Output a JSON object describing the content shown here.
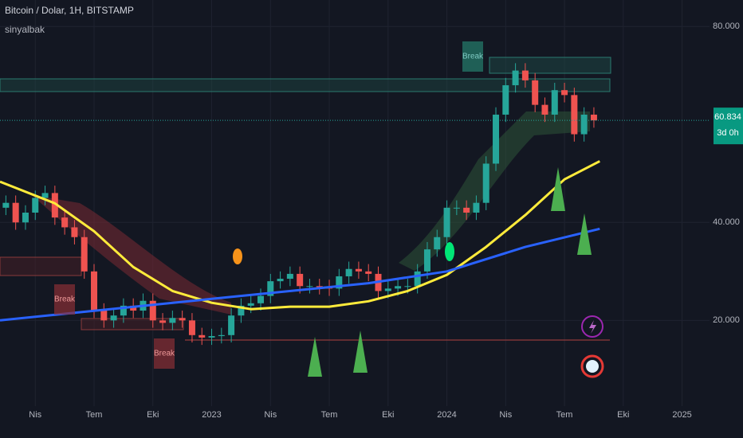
{
  "chart_data": {
    "type": "candlestick",
    "title": "Bitcoin / Dolar, 1H, BITSTAMP",
    "subtitle": "sinyalbak",
    "x": [
      1.5,
      2,
      2.5,
      3,
      3.5,
      4,
      4.5,
      5,
      5.5,
      6,
      6.5,
      7,
      7.5,
      8,
      8.5,
      9,
      9.5,
      10,
      10.5,
      11,
      11.5,
      12,
      12.5,
      13,
      13.5,
      14,
      14.5,
      15,
      15.5,
      16,
      16.5,
      17,
      17.5,
      18,
      18.5,
      19,
      19.5,
      20,
      20.5,
      21,
      21.5,
      22,
      22.5,
      23,
      23.5,
      24,
      24.5,
      25,
      25.5,
      26,
      26.5,
      27,
      27.5,
      28,
      28.5,
      29,
      29.5,
      30,
      30.5,
      31,
      31.5
    ],
    "open": [
      43000,
      44000,
      40000,
      42000,
      45000,
      46000,
      41000,
      39000,
      37000,
      30000,
      22000,
      20000,
      21000,
      23000,
      22000,
      24000,
      20000,
      19500,
      20500,
      20000,
      17000,
      16500,
      16800,
      17000,
      21000,
      23000,
      23500,
      25000,
      28000,
      28500,
      29500,
      27000,
      27000,
      26800,
      26500,
      29000,
      30500,
      30000,
      29500,
      26000,
      26500,
      27000,
      27000,
      30000,
      34500,
      37000,
      43000,
      43000,
      42000,
      44000,
      52000,
      62000,
      68000,
      71000,
      69000,
      64000,
      62000,
      67000,
      66000,
      58000,
      62000
    ],
    "high": [
      45500,
      45500,
      43500,
      46500,
      47500,
      47500,
      42500,
      40500,
      38500,
      31500,
      23500,
      22500,
      24500,
      24500,
      25500,
      25500,
      21500,
      22000,
      22000,
      21500,
      18500,
      18300,
      18500,
      22500,
      24500,
      25000,
      26500,
      29500,
      30000,
      31000,
      31000,
      28500,
      28500,
      28300,
      30500,
      32000,
      32000,
      31500,
      31000,
      28000,
      28500,
      28500,
      31500,
      36000,
      38500,
      44500,
      44500,
      44500,
      45500,
      53500,
      63500,
      69500,
      72500,
      72500,
      70500,
      65500,
      68500,
      68500,
      67500,
      63500,
      63500
    ],
    "low": [
      41500,
      38500,
      38500,
      40500,
      43500,
      39500,
      37500,
      35500,
      28500,
      20500,
      18500,
      18500,
      19500,
      20500,
      20500,
      18500,
      18000,
      18000,
      18500,
      15500,
      15000,
      15000,
      15300,
      15500,
      19500,
      21500,
      22000,
      23500,
      26500,
      27000,
      25500,
      25500,
      25300,
      25000,
      25000,
      27500,
      28500,
      28000,
      24500,
      24500,
      25000,
      25500,
      25500,
      28500,
      33000,
      35500,
      41500,
      40500,
      40500,
      42500,
      50500,
      60500,
      66500,
      67500,
      62500,
      60500,
      60500,
      64500,
      56500,
      56500,
      59334
    ],
    "close": [
      44000,
      40000,
      42000,
      45000,
      46000,
      41000,
      39000,
      37000,
      30000,
      22000,
      20000,
      21000,
      23000,
      22000,
      24000,
      20000,
      19500,
      20500,
      20000,
      17000,
      16500,
      16800,
      17000,
      21000,
      23000,
      23500,
      25000,
      28000,
      28500,
      29500,
      27000,
      27000,
      26800,
      26500,
      29000,
      30500,
      30000,
      29500,
      26000,
      26500,
      27000,
      27000,
      30000,
      34500,
      37000,
      43000,
      43000,
      42000,
      44000,
      52000,
      62000,
      68000,
      71000,
      69000,
      64000,
      62000,
      67000,
      66000,
      58000,
      62000,
      60834
    ],
    "up_color": "#26a69a",
    "down_color": "#ef5350",
    "lines": [
      {
        "color": "#ffeb3b",
        "x": [
          1.2,
          4,
          6,
          8,
          10,
          12,
          14,
          16,
          18,
          20,
          22,
          24,
          26,
          28,
          30,
          31.8
        ],
        "values": [
          48300,
          43900,
          38200,
          30900,
          26000,
          23600,
          22300,
          22800,
          22800,
          23900,
          26000,
          29300,
          35000,
          41500,
          48800,
          52500
        ]
      },
      {
        "color": "#2962ff",
        "x": [
          1.2,
          12,
          20,
          24,
          28,
          31.8
        ],
        "values": [
          20000,
          24400,
          27600,
          30000,
          35000,
          38700
        ]
      }
    ],
    "last_price": {
      "value": 60834,
      "label": "60.834"
    },
    "countdown": "3d 0h",
    "annotations": [
      "Break",
      "Break",
      "Break"
    ],
    "xlim": [
      1.2,
      37.4
    ],
    "ylim": [
      2500,
      85400
    ],
    "xticks": [
      {
        "value": 3,
        "label": "Nis"
      },
      {
        "value": 6,
        "label": "Tem"
      },
      {
        "value": 9,
        "label": "Eki"
      },
      {
        "value": 12,
        "label": "2023"
      },
      {
        "value": 15,
        "label": "Nis"
      },
      {
        "value": 18,
        "label": "Tem"
      },
      {
        "value": 21,
        "label": "Eki"
      },
      {
        "value": 24,
        "label": "2024"
      },
      {
        "value": 27,
        "label": "Nis"
      },
      {
        "value": 30,
        "label": "Tem"
      },
      {
        "value": 33,
        "label": "Eki"
      },
      {
        "value": 36,
        "label": "2025"
      }
    ],
    "yticks": [
      {
        "value": 20000,
        "label": "20.000"
      },
      {
        "value": 40000,
        "label": "40.000"
      },
      {
        "value": 80000,
        "label": "80.000"
      }
    ],
    "grid": true
  }
}
